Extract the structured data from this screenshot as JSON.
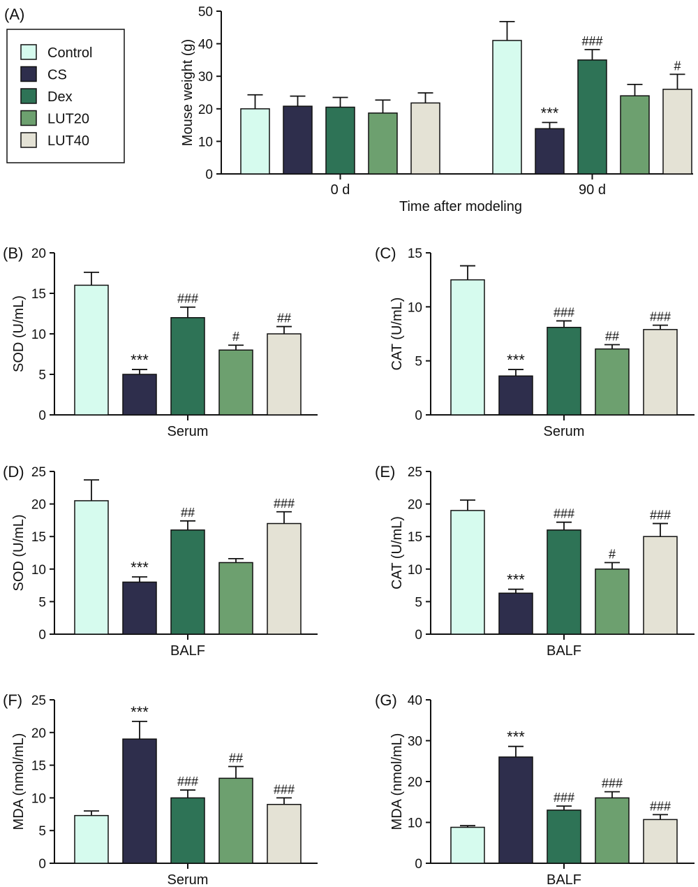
{
  "colors": {
    "Control": "#d6fbee",
    "CS": "#2e2e4c",
    "Dex": "#2e7356",
    "LUT20": "#6da06f",
    "LUT40": "#e4e2d5"
  },
  "chart_data": [
    {
      "panel": "(A)",
      "type": "bar",
      "ylabel": "Mouse weight (g)",
      "xlabel": "Time after modeling",
      "ylim": [
        0,
        50
      ],
      "yticks": [
        0,
        10,
        20,
        30,
        40,
        50
      ],
      "categories": [
        "0 d",
        "90 d"
      ],
      "legend": [
        "Control",
        "CS",
        "Dex",
        "LUT20",
        "LUT40"
      ],
      "series": [
        {
          "name": "Control",
          "values": [
            20.0,
            41.0
          ],
          "errors": [
            4.3,
            5.8
          ],
          "marks": [
            "",
            ""
          ]
        },
        {
          "name": "CS",
          "values": [
            20.8,
            13.9
          ],
          "errors": [
            3.1,
            1.9
          ],
          "marks": [
            "",
            "***"
          ]
        },
        {
          "name": "Dex",
          "values": [
            20.5,
            35.0
          ],
          "errors": [
            3.0,
            3.2
          ],
          "marks": [
            "",
            "###"
          ]
        },
        {
          "name": "LUT20",
          "values": [
            18.7,
            24.0
          ],
          "errors": [
            4.0,
            3.5
          ],
          "marks": [
            "",
            ""
          ]
        },
        {
          "name": "LUT40",
          "values": [
            21.8,
            26.0
          ],
          "errors": [
            3.1,
            4.6
          ],
          "marks": [
            "",
            "#"
          ]
        }
      ]
    },
    {
      "panel": "(B)",
      "type": "bar",
      "ylabel": "SOD (U/mL)",
      "xlabel": "Serum",
      "ylim": [
        0,
        20
      ],
      "yticks": [
        0,
        5,
        10,
        15,
        20
      ],
      "categories": [
        "Control",
        "CS",
        "Dex",
        "LUT20",
        "LUT40"
      ],
      "values": [
        16.0,
        5.0,
        12.0,
        8.0,
        10.0
      ],
      "errors": [
        1.6,
        0.6,
        1.3,
        0.6,
        0.9
      ],
      "marks": [
        "",
        "***",
        "###",
        "#",
        "##"
      ]
    },
    {
      "panel": "(C)",
      "type": "bar",
      "ylabel": "CAT (U/mL)",
      "xlabel": "Serum",
      "ylim": [
        0,
        15
      ],
      "yticks": [
        0,
        5,
        10,
        15
      ],
      "categories": [
        "Control",
        "CS",
        "Dex",
        "LUT20",
        "LUT40"
      ],
      "values": [
        12.5,
        3.6,
        8.1,
        6.1,
        7.9
      ],
      "errors": [
        1.3,
        0.6,
        0.6,
        0.4,
        0.4
      ],
      "marks": [
        "",
        "***",
        "###",
        "##",
        "###"
      ]
    },
    {
      "panel": "(D)",
      "type": "bar",
      "ylabel": "SOD (U/mL)",
      "xlabel": "BALF",
      "ylim": [
        0,
        25
      ],
      "yticks": [
        0,
        5,
        10,
        15,
        20,
        25
      ],
      "categories": [
        "Control",
        "CS",
        "Dex",
        "LUT20",
        "LUT40"
      ],
      "values": [
        20.5,
        8.0,
        16.0,
        11.0,
        17.0
      ],
      "errors": [
        3.2,
        0.8,
        1.4,
        0.6,
        1.8
      ],
      "marks": [
        "",
        "***",
        "##",
        "",
        "###"
      ]
    },
    {
      "panel": "(E)",
      "type": "bar",
      "ylabel": "CAT (U/mL)",
      "xlabel": "BALF",
      "ylim": [
        0,
        25
      ],
      "yticks": [
        0,
        5,
        10,
        15,
        20,
        25
      ],
      "categories": [
        "Control",
        "CS",
        "Dex",
        "LUT20",
        "LUT40"
      ],
      "values": [
        19.0,
        6.3,
        16.0,
        10.0,
        15.0
      ],
      "errors": [
        1.6,
        0.6,
        1.2,
        1.0,
        2.0
      ],
      "marks": [
        "",
        "***",
        "###",
        "#",
        "###"
      ]
    },
    {
      "panel": "(F)",
      "type": "bar",
      "ylabel": "MDA (nmol/mL)",
      "xlabel": "Serum",
      "ylim": [
        0,
        25
      ],
      "yticks": [
        0,
        5,
        10,
        15,
        20,
        25
      ],
      "categories": [
        "Control",
        "CS",
        "Dex",
        "LUT20",
        "LUT40"
      ],
      "values": [
        7.3,
        19.0,
        10.0,
        13.0,
        9.0
      ],
      "errors": [
        0.7,
        2.7,
        1.2,
        1.8,
        1.0
      ],
      "marks": [
        "",
        "***",
        "###",
        "##",
        "###"
      ]
    },
    {
      "panel": "(G)",
      "type": "bar",
      "ylabel": "MDA (nmol/mL)",
      "xlabel": "BALF",
      "ylim": [
        0,
        40
      ],
      "yticks": [
        0,
        10,
        20,
        30,
        40
      ],
      "categories": [
        "Control",
        "CS",
        "Dex",
        "LUT20",
        "LUT40"
      ],
      "values": [
        8.8,
        26.0,
        13.0,
        16.0,
        10.7
      ],
      "errors": [
        0.4,
        2.6,
        1.0,
        1.5,
        1.2
      ],
      "marks": [
        "",
        "***",
        "###",
        "###",
        "###"
      ]
    }
  ]
}
